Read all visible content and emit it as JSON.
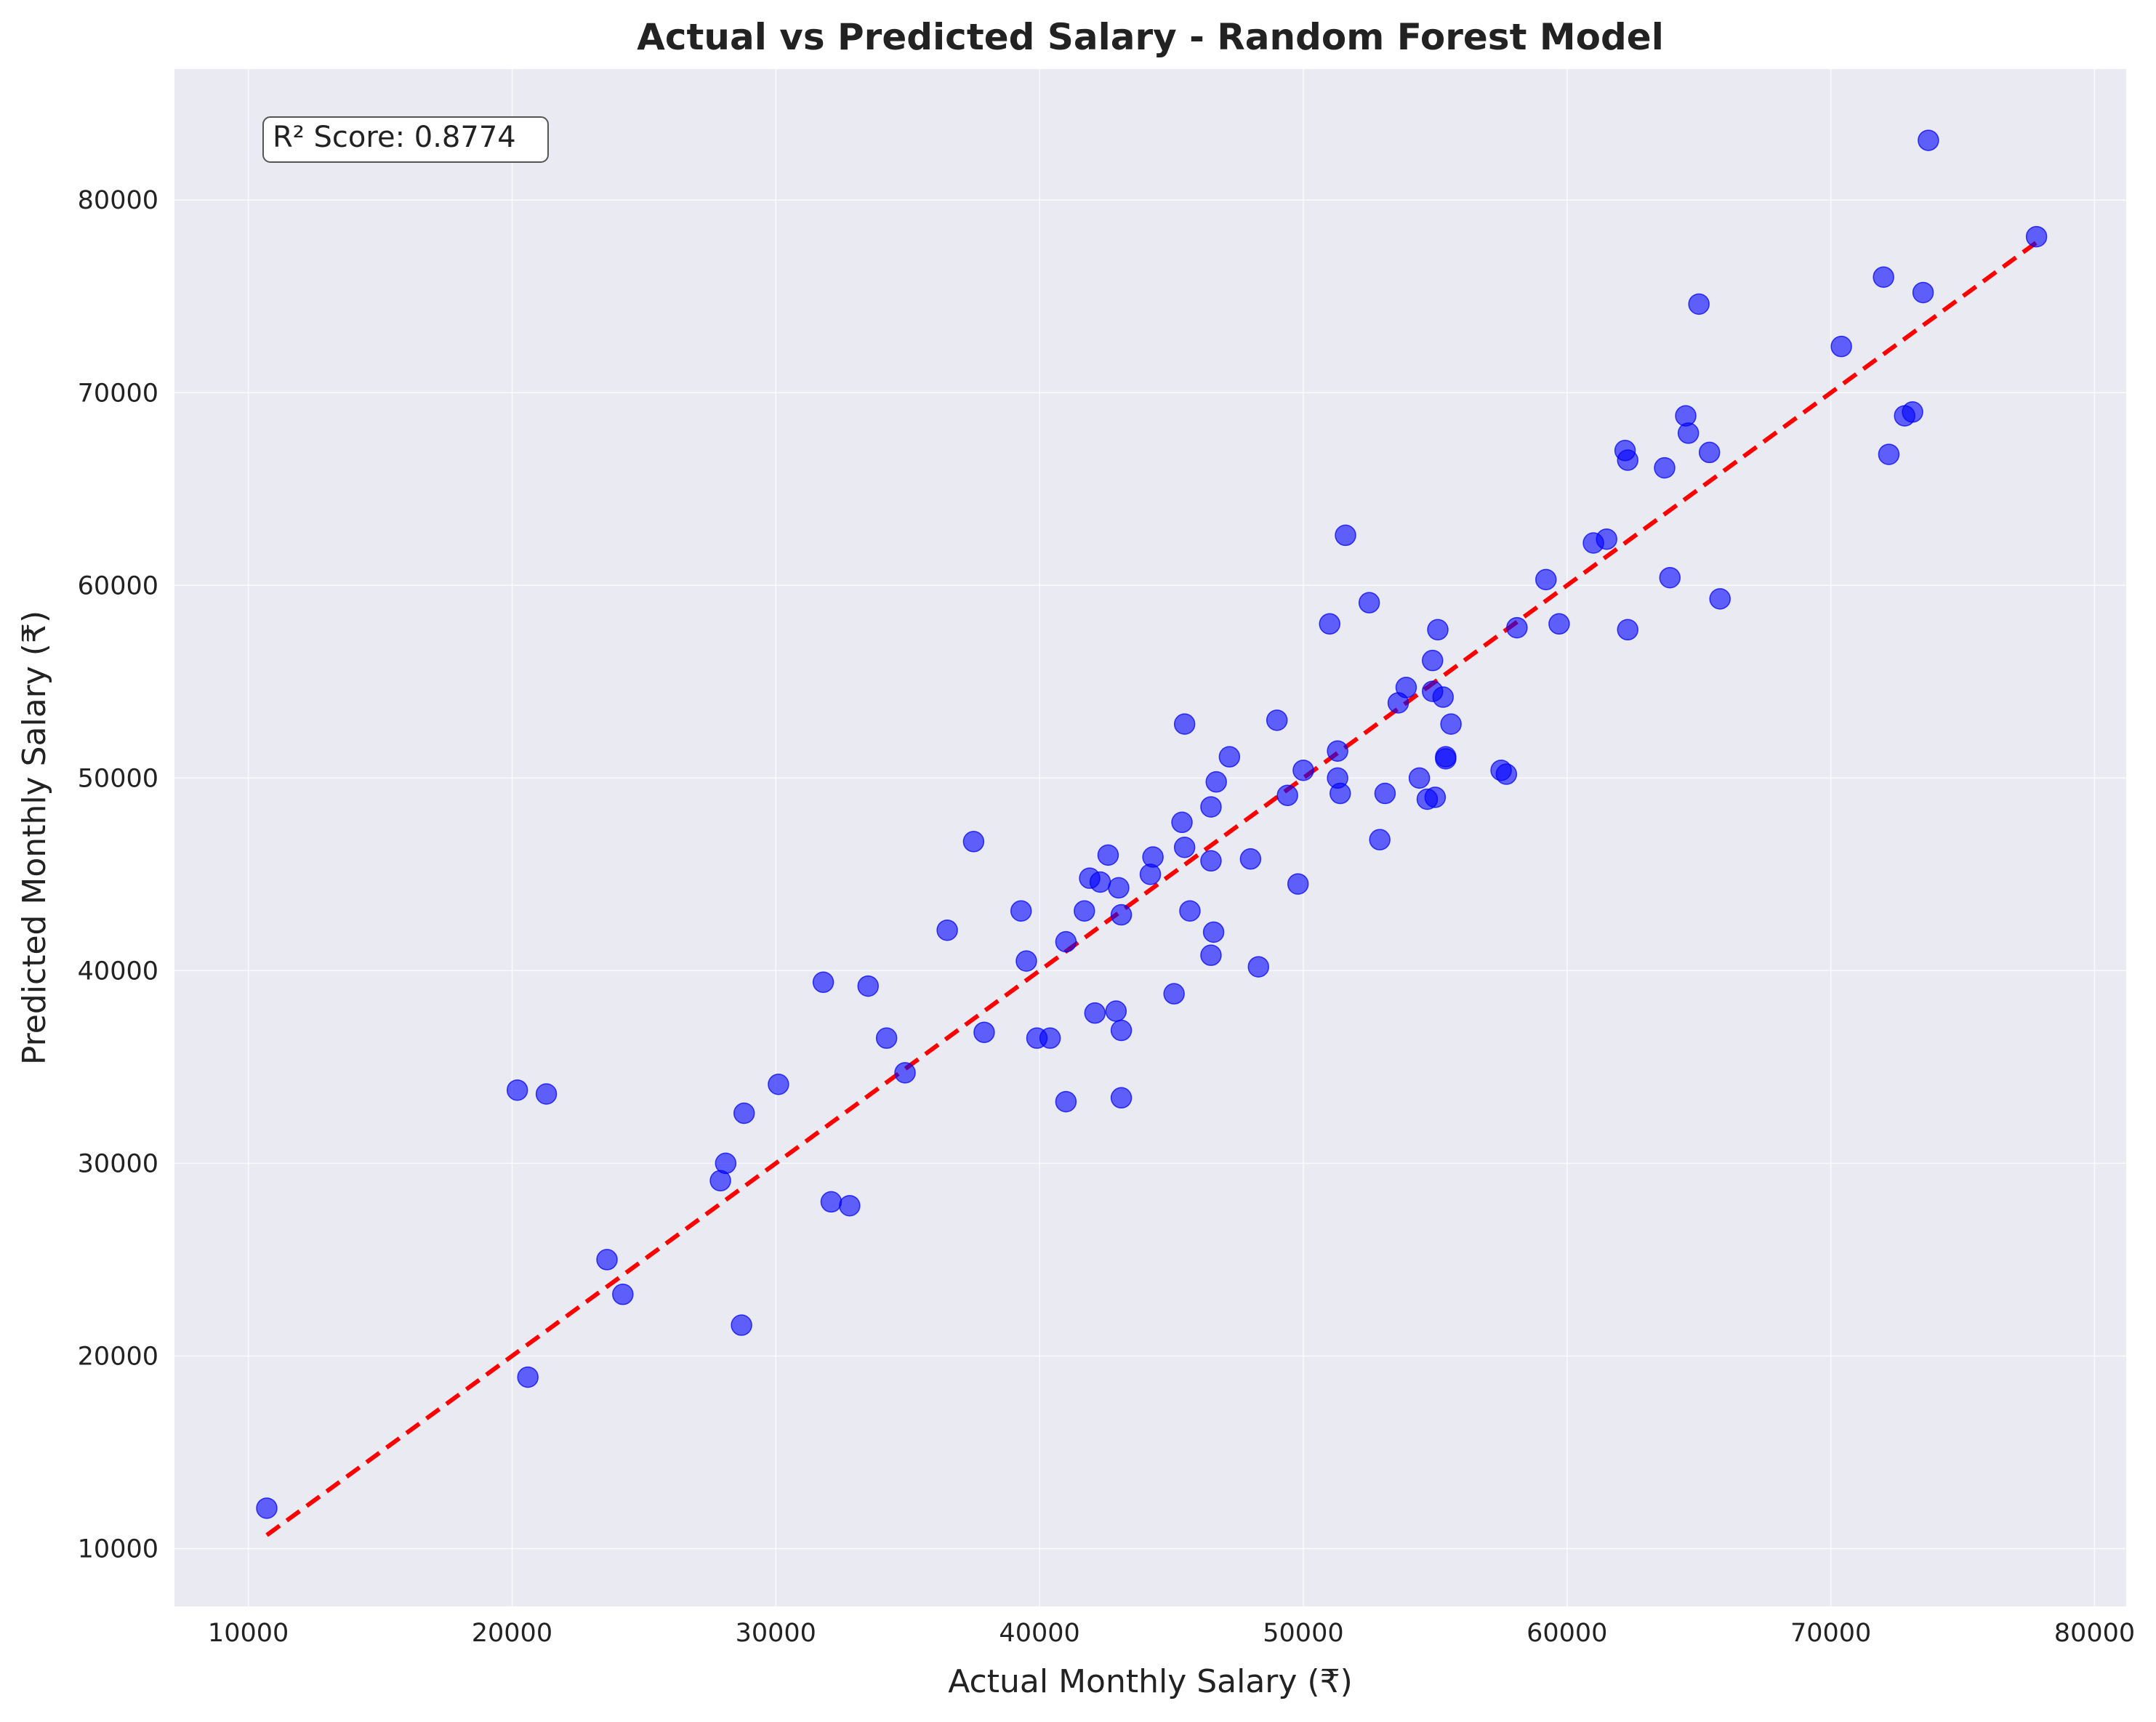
{
  "colors": {
    "plot_background": "#eaeaf2",
    "points": "#0000ff",
    "fit_line": "#ff0000",
    "grid": "#ffffff"
  },
  "chart_data": {
    "type": "scatter",
    "title": "Actual vs Predicted Salary - Random Forest Model",
    "xlabel": "Actual Monthly Salary (₹)",
    "ylabel": "Predicted Monthly Salary (₹)",
    "xlim": [
      7200,
      81200
    ],
    "ylim": [
      7000,
      86800
    ],
    "xticks": [
      10000,
      20000,
      30000,
      40000,
      50000,
      60000,
      70000,
      80000
    ],
    "yticks": [
      10000,
      20000,
      30000,
      40000,
      50000,
      60000,
      70000,
      80000
    ],
    "grid": true,
    "annotation": "R² Score: 0.8774",
    "annotation_position": "top-left",
    "reference_line": {
      "style": "dashed",
      "color": "red",
      "from": [
        10700,
        10700
      ],
      "to": [
        77800,
        77800
      ]
    },
    "series": [
      {
        "marker_color": "blue",
        "points": [
          [
            10700,
            12100
          ],
          [
            20200,
            33800
          ],
          [
            21300,
            33600
          ],
          [
            20600,
            18900
          ],
          [
            23600,
            25000
          ],
          [
            24200,
            23200
          ],
          [
            27900,
            29100
          ],
          [
            28100,
            30000
          ],
          [
            28800,
            32600
          ],
          [
            28700,
            21600
          ],
          [
            30100,
            34100
          ],
          [
            31800,
            39400
          ],
          [
            32100,
            28000
          ],
          [
            32800,
            27800
          ],
          [
            33500,
            39200
          ],
          [
            34200,
            36500
          ],
          [
            34900,
            34700
          ],
          [
            36500,
            42100
          ],
          [
            37500,
            46700
          ],
          [
            37900,
            36800
          ],
          [
            39300,
            43100
          ],
          [
            39500,
            40500
          ],
          [
            39900,
            36500
          ],
          [
            40400,
            36500
          ],
          [
            41000,
            41500
          ],
          [
            41000,
            33200
          ],
          [
            41700,
            43100
          ],
          [
            41900,
            44800
          ],
          [
            42100,
            37800
          ],
          [
            42300,
            44600
          ],
          [
            42600,
            46000
          ],
          [
            42900,
            37900
          ],
          [
            43000,
            44300
          ],
          [
            43100,
            42900
          ],
          [
            43100,
            36900
          ],
          [
            43100,
            33400
          ],
          [
            44200,
            45000
          ],
          [
            44300,
            45900
          ],
          [
            45100,
            38800
          ],
          [
            45400,
            47700
          ],
          [
            45500,
            46400
          ],
          [
            45500,
            52800
          ],
          [
            45700,
            43100
          ],
          [
            46500,
            45700
          ],
          [
            46500,
            40800
          ],
          [
            46500,
            48500
          ],
          [
            46600,
            42000
          ],
          [
            46700,
            49800
          ],
          [
            47200,
            51100
          ],
          [
            48000,
            45800
          ],
          [
            48300,
            40200
          ],
          [
            49000,
            53000
          ],
          [
            49400,
            49100
          ],
          [
            49800,
            44500
          ],
          [
            50000,
            50400
          ],
          [
            51000,
            58000
          ],
          [
            51300,
            51400
          ],
          [
            51300,
            50000
          ],
          [
            51400,
            49200
          ],
          [
            51600,
            62600
          ],
          [
            52500,
            59100
          ],
          [
            52900,
            46800
          ],
          [
            53100,
            49200
          ],
          [
            53600,
            53900
          ],
          [
            53900,
            54700
          ],
          [
            54400,
            50000
          ],
          [
            54700,
            48900
          ],
          [
            54900,
            56100
          ],
          [
            54900,
            54500
          ],
          [
            55000,
            49000
          ],
          [
            55100,
            57700
          ],
          [
            55300,
            54200
          ],
          [
            55400,
            51000
          ],
          [
            55400,
            51100
          ],
          [
            55600,
            52800
          ],
          [
            57500,
            50400
          ],
          [
            57700,
            50200
          ],
          [
            58100,
            57800
          ],
          [
            59200,
            60300
          ],
          [
            59700,
            58000
          ],
          [
            61000,
            62200
          ],
          [
            61500,
            62400
          ],
          [
            62200,
            67000
          ],
          [
            62300,
            66500
          ],
          [
            62300,
            57700
          ],
          [
            63700,
            66100
          ],
          [
            63900,
            60400
          ],
          [
            64500,
            68800
          ],
          [
            64600,
            67900
          ],
          [
            65000,
            74600
          ],
          [
            65400,
            66900
          ],
          [
            65800,
            59300
          ],
          [
            70400,
            72400
          ],
          [
            72000,
            76000
          ],
          [
            72200,
            66800
          ],
          [
            72800,
            68800
          ],
          [
            73100,
            69000
          ],
          [
            73500,
            75200
          ],
          [
            73700,
            83100
          ],
          [
            77800,
            78100
          ]
        ]
      }
    ]
  }
}
